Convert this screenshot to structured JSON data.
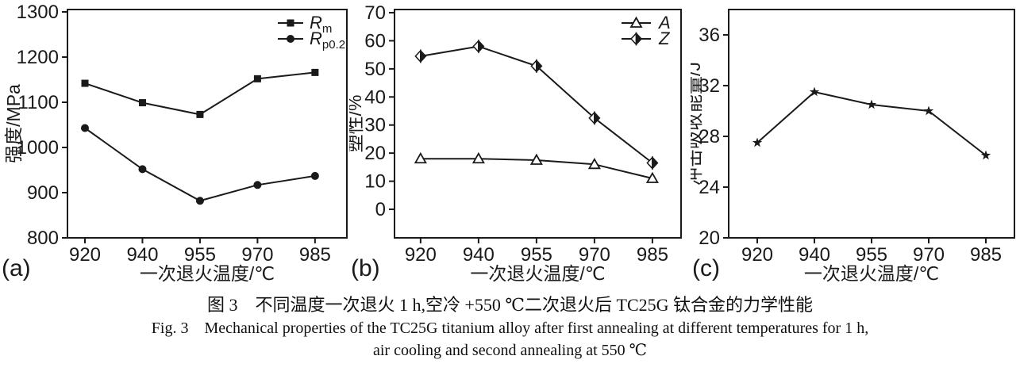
{
  "caption": {
    "chinese": "图 3　不同温度一次退火 1 h,空冷 +550 ℃二次退火后 TC25G 钛合金的力学性能",
    "english_line1": "Fig. 3　Mechanical properties of the TC25G titanium alloy after first annealing at different temperatures for 1 h,",
    "english_line2": "air cooling and second annealing at 550 ℃"
  },
  "ink_color": "#1a1a1a",
  "chart_data": [
    {
      "type": "line",
      "panel_label": "(a)",
      "xlabel": "一次退火温度/℃",
      "ylabel": "强度/MPa",
      "categories": [
        "920",
        "940",
        "955",
        "970",
        "985"
      ],
      "ylim": [
        800,
        1300
      ],
      "yticks": [
        800,
        900,
        1000,
        1100,
        1200,
        1300
      ],
      "grid": false,
      "legend_position": "top-right-inside",
      "series": [
        {
          "name": "Rm",
          "label_main": "R",
          "label_sub": "m",
          "marker": "square",
          "values": [
            1142,
            1099,
            1073,
            1152,
            1166
          ]
        },
        {
          "name": "Rp0.2",
          "label_main": "R",
          "label_sub": "p0.2",
          "marker": "circle",
          "values": [
            1043,
            952,
            882,
            917,
            937
          ]
        }
      ]
    },
    {
      "type": "line",
      "panel_label": "(b)",
      "xlabel": "一次退火温度/℃",
      "ylabel": "塑性/%",
      "categories": [
        "920",
        "940",
        "955",
        "970",
        "985"
      ],
      "ylim": [
        0,
        70
      ],
      "yticks": [
        0,
        10,
        20,
        30,
        40,
        50,
        60,
        70
      ],
      "grid": false,
      "legend_position": "top-right-inside",
      "series": [
        {
          "name": "A",
          "label_main": "A",
          "label_sub": "",
          "marker": "triangle-open",
          "values": [
            18,
            18,
            17.5,
            16,
            11
          ]
        },
        {
          "name": "Z",
          "label_main": "Z",
          "label_sub": "",
          "marker": "diamond-half",
          "values": [
            54.5,
            58,
            51,
            32.5,
            16.5
          ]
        }
      ]
    },
    {
      "type": "line",
      "panel_label": "(c)",
      "xlabel": "一次退火温度/℃",
      "ylabel": "冲击吸收能量/J",
      "categories": [
        "920",
        "940",
        "955",
        "970",
        "985"
      ],
      "ylim": [
        20,
        36
      ],
      "yticks": [
        20,
        24,
        28,
        32,
        36
      ],
      "grid": false,
      "legend_position": "none",
      "series": [
        {
          "name": "impact-energy",
          "label_main": "",
          "label_sub": "",
          "marker": "star",
          "values": [
            27.5,
            31.5,
            30.5,
            30,
            26.5
          ]
        }
      ]
    }
  ]
}
